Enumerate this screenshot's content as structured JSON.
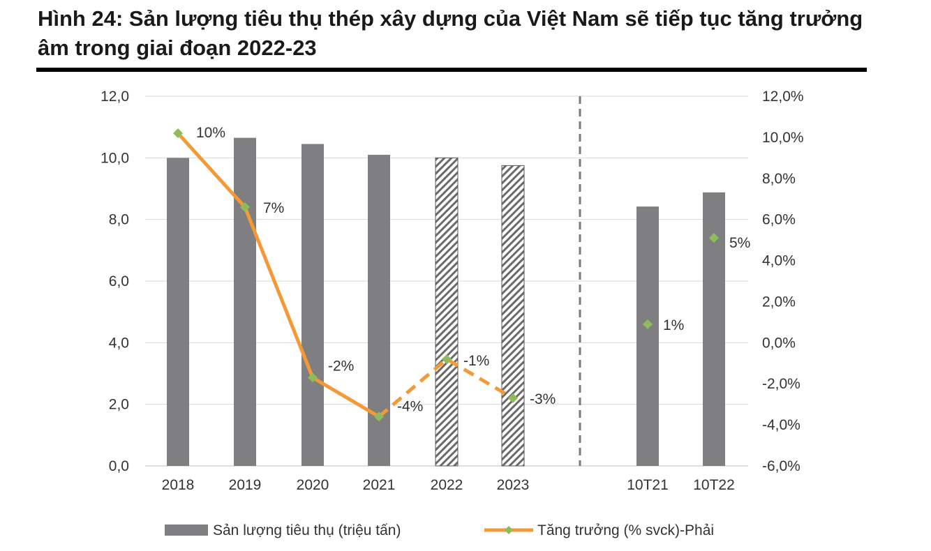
{
  "figure": {
    "title": "Hình 24: Sản lượng tiêu thụ thép xây dựng của Việt Nam sẽ tiếp tục tăng trưởng âm trong giai đoạn 2022-23"
  },
  "chart_data": {
    "type": "bar",
    "categories": [
      "2018",
      "2019",
      "2020",
      "2021",
      "2022",
      "2023",
      "10T21",
      "10T22"
    ],
    "series": [
      {
        "name": "Sản lượng tiêu thụ (triệu tấn)",
        "axis": "left",
        "values": [
          10.0,
          10.65,
          10.45,
          10.1,
          10.0,
          9.75,
          8.42,
          8.88
        ],
        "forecast_categories": [
          "2022",
          "2023"
        ],
        "color": "#7f7f81"
      },
      {
        "name": "Tăng trưởng (% svck)-Phải",
        "axis": "right",
        "type": "line",
        "values": [
          10.2,
          6.6,
          -1.7,
          -3.6,
          -0.8,
          -2.7,
          0.9,
          5.1
        ],
        "labels": [
          "10%",
          "7%",
          "-2%",
          "-4%",
          "-1%",
          "-3%",
          "1%",
          "5%"
        ],
        "color": "#f39a37",
        "marker_color": "#8fbc5a"
      }
    ],
    "left_axis": {
      "min": 0,
      "max": 12,
      "ticks": [
        "0,0",
        "2,0",
        "4,0",
        "6,0",
        "8,0",
        "10,0",
        "12,0"
      ]
    },
    "right_axis": {
      "min": -6,
      "max": 12,
      "ticks": [
        "-6,0%",
        "-4,0%",
        "-2,0%",
        "0,0%",
        "2,0%",
        "4,0%",
        "6,0%",
        "8,0%",
        "10,0%",
        "12,0%"
      ]
    },
    "grid": true,
    "legend": "bottom",
    "legend_labels": [
      "Sản lượng tiêu thụ (triệu tấn)",
      "Tăng trưởng (% svck)-Phải"
    ]
  }
}
